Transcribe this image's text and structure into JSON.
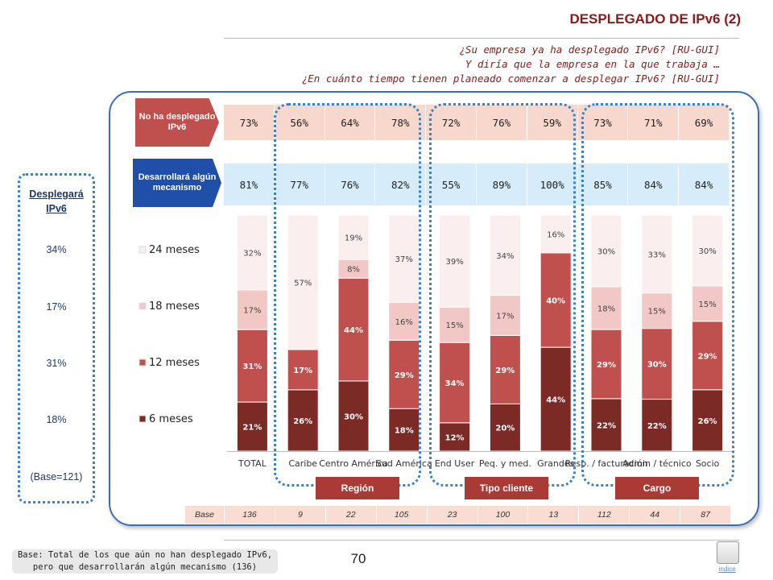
{
  "header": {
    "title": "DESPLEGADO DE IPv6 (2)",
    "question_lines": [
      "¿Su empresa ya ha desplegado IPv6? [RU-GUI]",
      "Y diría que la empresa en la que trabaja …",
      "¿En cuánto tiempo tienen planeado comenzar a desplegar IPv6? [RU-GUI]"
    ]
  },
  "rows": {
    "no_ha_desplegado": {
      "label": "No ha desplegado IPv6",
      "values": [
        "73%",
        "56%",
        "64%",
        "78%",
        "72%",
        "76%",
        "59%",
        "73%",
        "71%",
        "69%"
      ]
    },
    "desarrollara": {
      "label": "Desarrollará algún mecanismo",
      "values": [
        "81%",
        "77%",
        "76%",
        "82%",
        "55%",
        "89%",
        "100%",
        "85%",
        "84%",
        "84%"
      ]
    }
  },
  "left_panel": {
    "title": "Desplegará IPv6",
    "values": [
      "34%",
      "17%",
      "31%",
      "18%"
    ],
    "base": "(Base=121)"
  },
  "groups": [
    "Región",
    "Tipo cliente",
    "Cargo"
  ],
  "base_row": {
    "label": "Base",
    "values": [
      "136",
      "9",
      "22",
      "105",
      "23",
      "100",
      "13",
      "112",
      "44",
      "87"
    ]
  },
  "chart_data": {
    "type": "bar",
    "stacked": true,
    "percent": true,
    "categories": [
      "TOTAL",
      "Caribe",
      "Centro América",
      "Sud América",
      "End User",
      "Peq. y med.",
      "Grandes",
      "Resp. / facturación",
      "Admin / técnico",
      "Socio"
    ],
    "series": [
      {
        "name": "6 meses",
        "color": "#7b2a26",
        "values": [
          21,
          26,
          30,
          18,
          12,
          20,
          44,
          22,
          22,
          26
        ]
      },
      {
        "name": "12 meses",
        "color": "#c0504d",
        "values": [
          31,
          17,
          44,
          29,
          34,
          29,
          40,
          29,
          30,
          29
        ]
      },
      {
        "name": "18 meses",
        "color": "#f2c8c6",
        "values": [
          17,
          null,
          8,
          16,
          15,
          17,
          null,
          18,
          15,
          15
        ]
      },
      {
        "name": "24 meses",
        "color": "#fbeeee",
        "values": [
          32,
          57,
          19,
          37,
          39,
          34,
          16,
          30,
          33,
          30
        ]
      }
    ],
    "legend_position": "left",
    "ylim": [
      0,
      100
    ],
    "grid": false
  },
  "footer": {
    "page_number": "70",
    "footnote": "Base: Total de los que aún no han desplegado IPv6, pero que desarrollarán algún mecanismo (136)",
    "index_label": "índice"
  }
}
